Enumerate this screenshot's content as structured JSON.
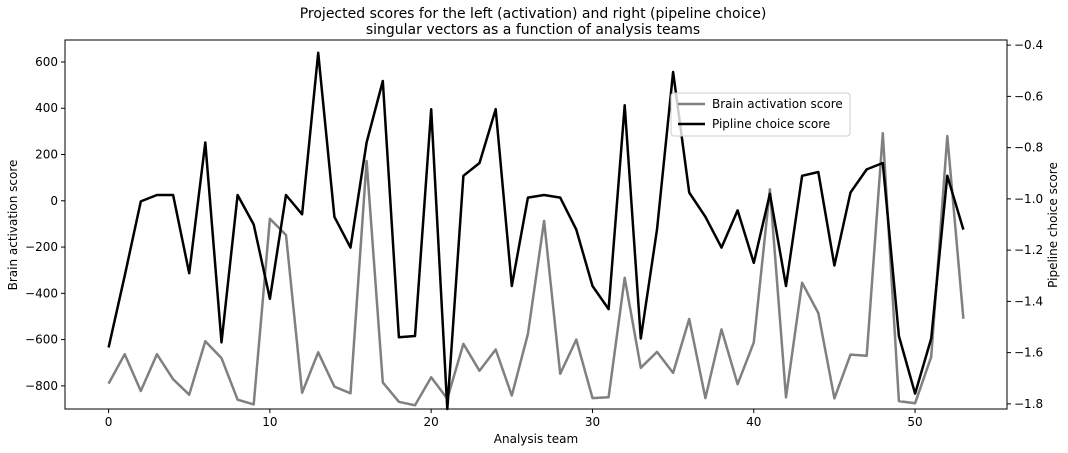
{
  "chart_data": {
    "type": "line",
    "title": [
      "Projected scores for the left (activation) and right (pipeline choice)",
      "singular vectors as a function of analysis teams"
    ],
    "xlabel": "Analysis team",
    "ylabel_left": "Brain activation score",
    "ylabel_right": "Pipeline choice score",
    "xlim": [
      -2.7,
      55.7
    ],
    "ylim_left": [
      -900,
      695
    ],
    "ylim_right": [
      -1.82,
      -0.38
    ],
    "xticks": [
      0,
      10,
      20,
      30,
      40,
      50
    ],
    "yticks_left": [
      600,
      400,
      200,
      0,
      -200,
      -400,
      -600,
      -800
    ],
    "yticks_right": [
      -0.4,
      -0.6,
      -0.8,
      -1.0,
      -1.2,
      -1.4,
      -1.6,
      -1.8
    ],
    "grid": false,
    "legend_position": "upper-center-right",
    "x": [
      0,
      1,
      2,
      3,
      4,
      5,
      6,
      7,
      8,
      9,
      10,
      11,
      12,
      13,
      14,
      15,
      16,
      17,
      18,
      19,
      20,
      21,
      22,
      23,
      24,
      25,
      26,
      27,
      28,
      29,
      30,
      31,
      32,
      33,
      34,
      35,
      36,
      37,
      38,
      39,
      40,
      41,
      42,
      43,
      44,
      45,
      46,
      47,
      48,
      49,
      50,
      51,
      52,
      53
    ],
    "series": [
      {
        "name": "Brain activation score",
        "axis": "left",
        "color": "#808080",
        "values": [
          -790,
          -663,
          -822,
          -663,
          -771,
          -838,
          -607,
          -680,
          -860,
          -880,
          -78,
          -148,
          -830,
          -655,
          -803,
          -832,
          172,
          -785,
          -869,
          -884,
          -763,
          -856,
          -618,
          -735,
          -643,
          -842,
          -576,
          -87,
          -748,
          -600,
          -853,
          -849,
          -333,
          -722,
          -653,
          -744,
          -511,
          -853,
          -556,
          -793,
          -612,
          50,
          -850,
          -354,
          -485,
          -854,
          -665,
          -670,
          292,
          -866,
          -875,
          -675,
          280,
          -510
        ]
      },
      {
        "name": "Pipline choice score",
        "axis": "right",
        "color": "#000000",
        "values": [
          -1.58,
          -1.3,
          -1.01,
          -0.985,
          -0.985,
          -1.29,
          -0.78,
          -1.56,
          -0.985,
          -1.1,
          -1.39,
          -0.985,
          -1.06,
          -0.43,
          -1.07,
          -1.19,
          -0.78,
          -0.54,
          -1.54,
          -1.535,
          -0.65,
          -1.82,
          -0.91,
          -0.86,
          -0.65,
          -1.34,
          -0.995,
          -0.985,
          -0.995,
          -1.12,
          -1.34,
          -1.43,
          -0.635,
          -1.545,
          -1.12,
          -0.505,
          -0.975,
          -1.07,
          -1.19,
          -1.045,
          -1.25,
          -0.98,
          -1.34,
          -0.91,
          -0.895,
          -1.26,
          -0.975,
          -0.885,
          -0.86,
          -1.535,
          -1.76,
          -1.545,
          -0.91,
          -1.12
        ]
      }
    ]
  }
}
